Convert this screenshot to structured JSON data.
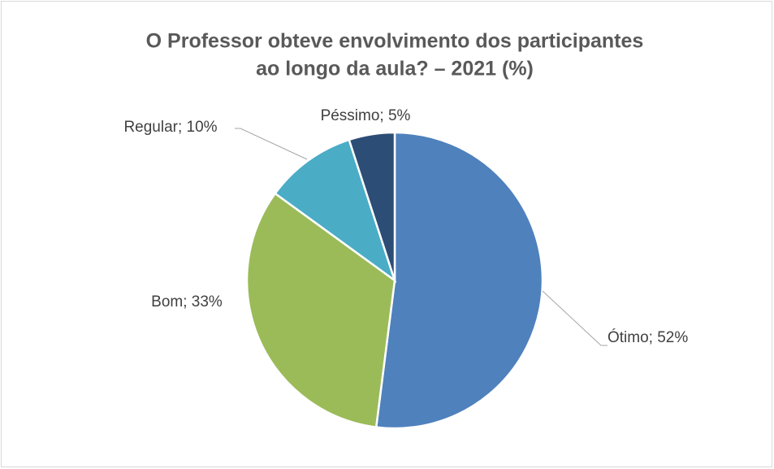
{
  "chart_data": {
    "type": "pie",
    "title": [
      "O Professor obteve envolvimento dos participantes",
      "ao longo da aula? – 2021 (%)"
    ],
    "values": [
      52,
      33,
      10,
      5
    ],
    "value_labels": [
      "Ótimo; 52%",
      "Bom; 33%",
      "Regular; 10%",
      "Péssimo; 5%"
    ],
    "colors": [
      "#4f81bd",
      "#9bbb59",
      "#4bacc6",
      "#2c4d75"
    ]
  }
}
